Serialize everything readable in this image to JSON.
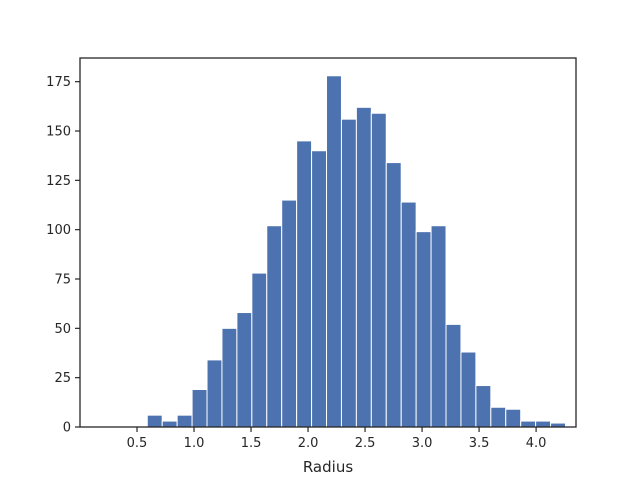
{
  "chart_data": {
    "type": "bar",
    "subtype": "histogram",
    "title": "",
    "xlabel": "Radius",
    "ylabel": "",
    "xlim": [
      0.0,
      4.35
    ],
    "ylim": [
      0,
      187
    ],
    "xticks": [
      0.5,
      1.0,
      1.5,
      2.0,
      2.5,
      3.0,
      3.5,
      4.0
    ],
    "xtick_labels": [
      "0.5",
      "1.0",
      "1.5",
      "2.0",
      "2.5",
      "3.0",
      "3.5",
      "4.0"
    ],
    "yticks": [
      0,
      25,
      50,
      75,
      100,
      125,
      150,
      175
    ],
    "ytick_labels": [
      "0",
      "25",
      "50",
      "75",
      "100",
      "125",
      "150",
      "175"
    ],
    "bin_start": 0.59,
    "bin_width": 0.131,
    "values": [
      6,
      3,
      6,
      19,
      34,
      50,
      58,
      78,
      102,
      115,
      145,
      140,
      178,
      156,
      162,
      159,
      134,
      114,
      99,
      102,
      52,
      38,
      21,
      10,
      9,
      3,
      3,
      2
    ],
    "grid": false,
    "legend": "none",
    "bar_color": "#4c72b0",
    "edge_color": "#ffffff",
    "axes_color": "#262626"
  }
}
